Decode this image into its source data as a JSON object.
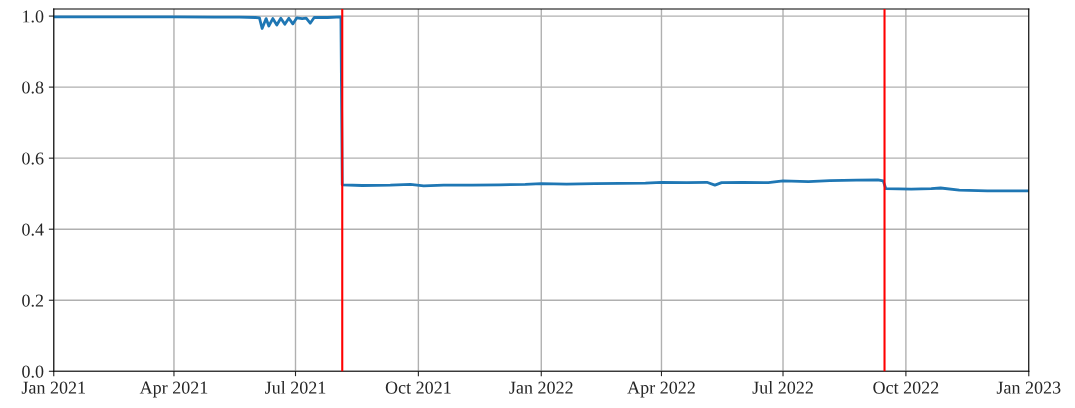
{
  "chart_data": {
    "type": "line",
    "x": [
      "2021-01-01",
      "2021-02-01",
      "2021-03-01",
      "2021-04-01",
      "2021-05-01",
      "2021-05-20",
      "2021-06-01",
      "2021-06-04",
      "2021-06-06",
      "2021-06-09",
      "2021-06-11",
      "2021-06-14",
      "2021-06-17",
      "2021-06-20",
      "2021-06-23",
      "2021-06-26",
      "2021-06-29",
      "2021-07-02",
      "2021-07-06",
      "2021-07-09",
      "2021-07-12",
      "2021-07-15",
      "2021-07-25",
      "2021-08-04",
      "2021-08-05",
      "2021-08-20",
      "2021-09-10",
      "2021-09-25",
      "2021-10-05",
      "2021-10-20",
      "2021-11-10",
      "2021-12-01",
      "2021-12-20",
      "2022-01-01",
      "2022-01-20",
      "2022-02-10",
      "2022-03-01",
      "2022-03-20",
      "2022-04-01",
      "2022-04-20",
      "2022-05-05",
      "2022-05-11",
      "2022-05-16",
      "2022-06-01",
      "2022-06-20",
      "2022-07-01",
      "2022-07-20",
      "2022-08-05",
      "2022-08-25",
      "2022-09-10",
      "2022-09-14",
      "2022-09-16",
      "2022-10-05",
      "2022-10-20",
      "2022-10-27",
      "2022-11-10",
      "2022-12-01",
      "2022-12-20",
      "2023-01-01"
    ],
    "series": [
      {
        "color": "#1f77b4",
        "values": [
          0.998,
          0.998,
          0.998,
          0.998,
          0.997,
          0.997,
          0.996,
          0.995,
          0.965,
          0.993,
          0.972,
          0.993,
          0.975,
          0.994,
          0.977,
          0.994,
          0.978,
          0.995,
          0.993,
          0.994,
          0.98,
          0.996,
          0.996,
          0.998,
          0.525,
          0.523,
          0.524,
          0.526,
          0.522,
          0.524,
          0.524,
          0.525,
          0.526,
          0.528,
          0.527,
          0.528,
          0.529,
          0.53,
          0.532,
          0.531,
          0.532,
          0.524,
          0.531,
          0.532,
          0.531,
          0.536,
          0.534,
          0.537,
          0.538,
          0.539,
          0.536,
          0.514,
          0.513,
          0.514,
          0.516,
          0.51,
          0.508,
          0.508,
          0.508
        ]
      }
    ],
    "xlim": [
      "2021-01-01",
      "2023-01-01"
    ],
    "xticks": [
      {
        "value": "2021-01-01",
        "label": "Jan 2021"
      },
      {
        "value": "2021-04-01",
        "label": "Apr 2021"
      },
      {
        "value": "2021-07-01",
        "label": "Jul 2021"
      },
      {
        "value": "2021-10-01",
        "label": "Oct 2021"
      },
      {
        "value": "2022-01-01",
        "label": "Jan 2022"
      },
      {
        "value": "2022-04-01",
        "label": "Apr 2022"
      },
      {
        "value": "2022-07-01",
        "label": "Jul 2022"
      },
      {
        "value": "2022-10-01",
        "label": "Oct 2022"
      },
      {
        "value": "2023-01-01",
        "label": "Jan 2023"
      }
    ],
    "ylim": [
      0,
      1.02
    ],
    "yticks": [
      {
        "value": 0,
        "label": "0.0"
      },
      {
        "value": 0.2,
        "label": "0.2"
      },
      {
        "value": 0.4,
        "label": "0.4"
      },
      {
        "value": 0.6,
        "label": "0.6"
      },
      {
        "value": 0.8,
        "label": "0.8"
      },
      {
        "value": 1.0,
        "label": "1.0"
      }
    ],
    "ref_lines": [
      {
        "axis": "x",
        "value": "2021-08-05",
        "color": "#ff0000"
      },
      {
        "axis": "x",
        "value": "2022-09-15",
        "color": "#ff0000"
      }
    ],
    "grid": true,
    "legend": false,
    "marker": "none",
    "line_style": "solid"
  }
}
